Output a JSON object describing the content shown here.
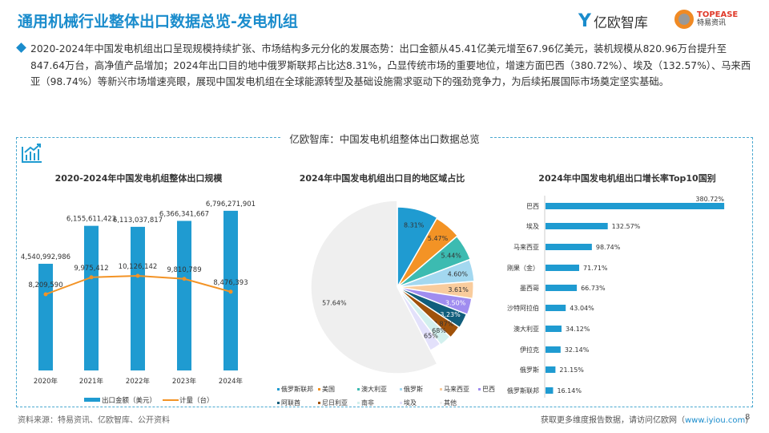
{
  "header": {
    "title": "通用机械行业整体出口数据总览-发电机组",
    "logo1": "亿欧智库",
    "logo2_en": "TOPEASE",
    "logo2_cn": "特易资讯"
  },
  "summary": "2020-2024年中国发电机组出口呈现规模持续扩张、市场结构多元分化的发展态势：出口金额从45.41亿美元增至67.96亿美元，装机规模从820.96万台提升至847.64万台，高净值产品增加；2024年出口目的地中俄罗斯联邦占比达8.31%，凸显传统市场的重要地位，增速方面巴西（380.72%）、埃及（132.57%）、马来西亚（98.74%）等新兴市场增速亮眼，展现中国发电机组在全球能源转型及基础设施需求驱动下的强劲竞争力，为后续拓展国际市场奠定坚实基础。",
  "box_title": "亿欧智库：中国发电机组整体出口数据总览",
  "footer": {
    "source": "资料来源：特易资讯、亿欧智库、公开资料",
    "more": "获取更多维度报告数据，请访问亿欧网（",
    "url": "www.iyiou.com",
    "close": ")",
    "page": "8"
  },
  "colors": {
    "accent": "#1a8ccc",
    "bar": "#1f9bd1",
    "line": "#f39325"
  },
  "chart_data": [
    {
      "type": "bar+line",
      "title": "2020-2024年中国发电机组整体出口规模",
      "categories": [
        "2020年",
        "2021年",
        "2022年",
        "2023年",
        "2024年"
      ],
      "series": [
        {
          "name": "出口金额（美元）",
          "type": "bar",
          "values": [
            4540992986,
            6155611423,
            6113037817,
            6366341667,
            6796271901
          ],
          "labels": [
            "4,540,992,986",
            "6,155,611,423",
            "6,113,037,817",
            "6,366,341,667",
            "6,796,271,901"
          ]
        },
        {
          "name": "计量（台）",
          "type": "line",
          "values": [
            8209590,
            9975412,
            10126142,
            9810789,
            8476393
          ],
          "labels": [
            "8,209,590",
            "9,975,412",
            "10,126,142",
            "9,810,789",
            "8,476,393"
          ]
        }
      ],
      "legend": "bottom"
    },
    {
      "type": "pie",
      "title": "2024年中国发电机组出口目的地区域占比",
      "legend": "bottom",
      "slices": [
        {
          "name": "俄罗斯联邦",
          "value": 8.31,
          "label": "8.31%",
          "color": "#1f9bd1"
        },
        {
          "name": "美国",
          "value": 5.47,
          "label": "5.47%",
          "color": "#f39325"
        },
        {
          "name": "澳大利亚",
          "value": 5.44,
          "label": "5.44%",
          "color": "#3cbbb1"
        },
        {
          "name": "俄罗斯",
          "value": 4.6,
          "label": "4.60%",
          "color": "#a3d8f0"
        },
        {
          "name": "马来西亚",
          "value": 3.61,
          "label": "3.61%",
          "color": "#f9cc9d"
        },
        {
          "name": "巴西",
          "value": 3.5,
          "label": "3.50%",
          "color": "#a08df0"
        },
        {
          "name": "阿联酋",
          "value": 3.23,
          "label": "3.23%",
          "color": "#115e7c"
        },
        {
          "name": "尼日利亚",
          "value": 2.87,
          "label": "2.87%",
          "color": "#a0520a"
        },
        {
          "name": "南非",
          "value": 2.68,
          "label": "2.68%",
          "color": "#d2f0ee"
        },
        {
          "name": "埃及",
          "value": 2.65,
          "label": "2.65%",
          "color": "#e3e1fb"
        },
        {
          "name": "其他",
          "value": 57.64,
          "label": "57.64%",
          "color": "#efefef"
        }
      ]
    },
    {
      "type": "bar",
      "orientation": "horizontal",
      "title": "2024年中国发电机组出口增长率Top10国别",
      "categories": [
        "巴西",
        "埃及",
        "马来西亚",
        "刚果（金）",
        "墨西哥",
        "沙特阿拉伯",
        "澳大利亚",
        "伊拉克",
        "俄罗斯",
        "俄罗斯联邦"
      ],
      "values": [
        380.72,
        132.57,
        98.74,
        71.71,
        66.73,
        43.04,
        34.12,
        32.14,
        21.15,
        16.14
      ],
      "labels": [
        "380.72%",
        "132.57%",
        "98.74%",
        "71.71%",
        "66.73%",
        "43.04%",
        "34.12%",
        "32.14%",
        "21.15%",
        "16.14%"
      ]
    }
  ]
}
